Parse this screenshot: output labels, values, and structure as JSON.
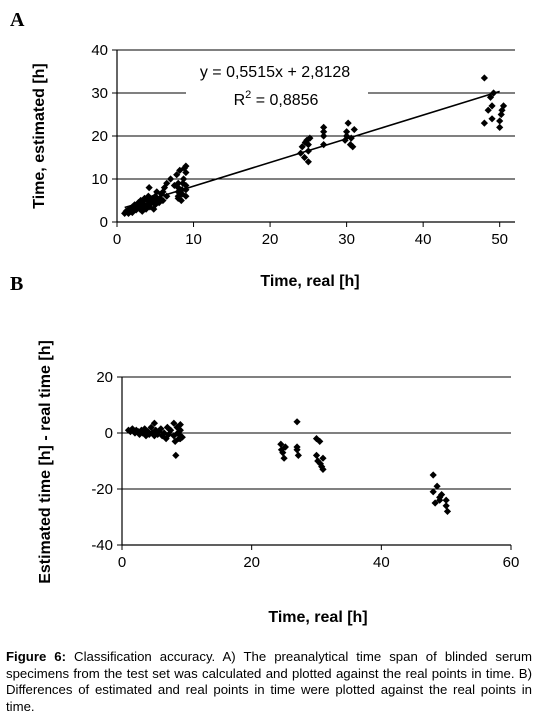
{
  "charts": [
    {
      "panel_label": "A",
      "type": "scatter",
      "xlabel": "Time, real [h]",
      "ylabel": "Time, estimated [h]",
      "xlim": [
        0,
        52
      ],
      "ylim": [
        0,
        40
      ],
      "xticks": [
        0,
        10,
        20,
        30,
        40,
        50
      ],
      "yticks": [
        0,
        10,
        20,
        30,
        40
      ],
      "grid": "horizontal",
      "equation": "y = 0,5515x + 2,8128",
      "r2_prefix": "R",
      "r2_sup": "2",
      "r2_value": " = 0,8856",
      "trendline": {
        "slope": 0.5515,
        "intercept": 2.8128,
        "x_range": [
          1,
          50
        ]
      },
      "points": [
        [
          1,
          2
        ],
        [
          1.2,
          2.5
        ],
        [
          1.5,
          2
        ],
        [
          1.6,
          3
        ],
        [
          1.8,
          2.5
        ],
        [
          2,
          2.2
        ],
        [
          2,
          3.5
        ],
        [
          2.2,
          3
        ],
        [
          2.3,
          4
        ],
        [
          2.5,
          2.8
        ],
        [
          2.6,
          3.5
        ],
        [
          2.8,
          4.5
        ],
        [
          3,
          3
        ],
        [
          3,
          4
        ],
        [
          3.1,
          5
        ],
        [
          3.3,
          2.5
        ],
        [
          3.4,
          3.5
        ],
        [
          3.5,
          4.2
        ],
        [
          3.6,
          5.5
        ],
        [
          3.8,
          3
        ],
        [
          4,
          4
        ],
        [
          4,
          5
        ],
        [
          4.1,
          6
        ],
        [
          4.2,
          8
        ],
        [
          4.3,
          3.5
        ],
        [
          4.5,
          4.5
        ],
        [
          4.6,
          5.5
        ],
        [
          4.8,
          3
        ],
        [
          5,
          4
        ],
        [
          5,
          5
        ],
        [
          5,
          6
        ],
        [
          5.2,
          7
        ],
        [
          5.5,
          4.5
        ],
        [
          5.6,
          5.5
        ],
        [
          5.8,
          6.5
        ],
        [
          6,
          5
        ],
        [
          6,
          7
        ],
        [
          6.2,
          8
        ],
        [
          6.5,
          9
        ],
        [
          6.5,
          6
        ],
        [
          7,
          10
        ],
        [
          7.5,
          8.5
        ],
        [
          7.8,
          11
        ],
        [
          8,
          5.5
        ],
        [
          8,
          6
        ],
        [
          8,
          7
        ],
        [
          8,
          8
        ],
        [
          8,
          9
        ],
        [
          8.2,
          12
        ],
        [
          8.4,
          5
        ],
        [
          8.5,
          6.5
        ],
        [
          8.5,
          7.5
        ],
        [
          8.6,
          9
        ],
        [
          8.7,
          10
        ],
        [
          8.8,
          12.5
        ],
        [
          9,
          6
        ],
        [
          9,
          7.5
        ],
        [
          9,
          8.5
        ],
        [
          9,
          11.5
        ],
        [
          9,
          13
        ],
        [
          24,
          16
        ],
        [
          24.2,
          17.5
        ],
        [
          24.5,
          15
        ],
        [
          24.6,
          18.5
        ],
        [
          24.8,
          19
        ],
        [
          25,
          14
        ],
        [
          25,
          16.5
        ],
        [
          25,
          18
        ],
        [
          25.2,
          19.5
        ],
        [
          27,
          18
        ],
        [
          27,
          20
        ],
        [
          27,
          21
        ],
        [
          27,
          22
        ],
        [
          29.8,
          19
        ],
        [
          30,
          20
        ],
        [
          30,
          21
        ],
        [
          30.2,
          23
        ],
        [
          30.5,
          18
        ],
        [
          30.6,
          19.5
        ],
        [
          30.8,
          17.5
        ],
        [
          31,
          21.5
        ],
        [
          48,
          33.5
        ],
        [
          48,
          23
        ],
        [
          48.5,
          26
        ],
        [
          48.8,
          29
        ],
        [
          49,
          24
        ],
        [
          49,
          27
        ],
        [
          49.2,
          30
        ],
        [
          50,
          22
        ],
        [
          50,
          23.5
        ],
        [
          50.2,
          25
        ],
        [
          50.3,
          26
        ],
        [
          50.5,
          27
        ]
      ]
    },
    {
      "panel_label": "B",
      "type": "scatter",
      "xlabel": "Time, real [h]",
      "ylabel": "Estimated time [h] - real time [h]",
      "xlim": [
        0,
        60
      ],
      "ylim": [
        -40,
        20
      ],
      "xticks": [
        0,
        20,
        40,
        60
      ],
      "yticks": [
        -40,
        -20,
        0,
        20
      ],
      "grid": "horizontal",
      "points": [
        [
          1,
          1
        ],
        [
          1.3,
          0.5
        ],
        [
          1.6,
          1.5
        ],
        [
          2,
          0
        ],
        [
          2.2,
          1
        ],
        [
          2.5,
          0.5
        ],
        [
          2.7,
          -0.5
        ],
        [
          3,
          1
        ],
        [
          3.2,
          0
        ],
        [
          3.5,
          1.5
        ],
        [
          3.7,
          -1
        ],
        [
          4,
          0.5
        ],
        [
          4.2,
          -0.5
        ],
        [
          4.5,
          2
        ],
        [
          4.7,
          0
        ],
        [
          5,
          3.5
        ],
        [
          5,
          -1
        ],
        [
          5.2,
          1
        ],
        [
          5.5,
          -0.5
        ],
        [
          5.7,
          0.5
        ],
        [
          6,
          1.5
        ],
        [
          6.2,
          -1
        ],
        [
          6.5,
          0
        ],
        [
          6.8,
          -2
        ],
        [
          7,
          2
        ],
        [
          7.2,
          -0.5
        ],
        [
          7.5,
          1
        ],
        [
          8,
          3.5
        ],
        [
          8,
          -1
        ],
        [
          8.2,
          -3
        ],
        [
          8.3,
          -8
        ],
        [
          8.5,
          2
        ],
        [
          8.6,
          0
        ],
        [
          8.8,
          -2
        ],
        [
          9,
          3
        ],
        [
          9,
          1
        ],
        [
          9,
          -1
        ],
        [
          9,
          -2
        ],
        [
          9.3,
          -1.5
        ],
        [
          24.5,
          -4
        ],
        [
          24.6,
          -6
        ],
        [
          24.8,
          -7
        ],
        [
          25,
          -9
        ],
        [
          25.2,
          -5
        ],
        [
          27,
          4
        ],
        [
          27,
          -5
        ],
        [
          27,
          -6
        ],
        [
          27.2,
          -8
        ],
        [
          30,
          -2
        ],
        [
          30,
          -8
        ],
        [
          30.2,
          -10
        ],
        [
          30.5,
          -3
        ],
        [
          30.6,
          -11
        ],
        [
          30.8,
          -12
        ],
        [
          31,
          -13
        ],
        [
          31,
          -9
        ],
        [
          48,
          -15
        ],
        [
          48,
          -21
        ],
        [
          48.3,
          -25
        ],
        [
          48.6,
          -19
        ],
        [
          49,
          -23
        ],
        [
          49,
          -24
        ],
        [
          49.3,
          -22
        ],
        [
          50,
          -24
        ],
        [
          50,
          -26
        ],
        [
          50.2,
          -28
        ]
      ]
    }
  ],
  "caption": {
    "label": "Figure 6:",
    "text": " Classification accuracy. A) The preanalytical time span of blinded serum specimens from the test set was calculated and plotted against the real points in time. B) Differences of estimated and real points in time were plotted against the real points in time."
  }
}
